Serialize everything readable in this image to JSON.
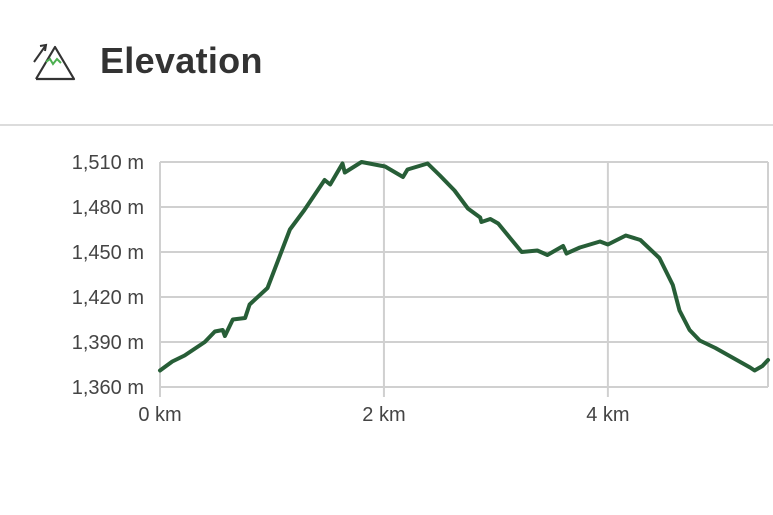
{
  "header": {
    "title": "Elevation",
    "icon": "mountain-elevation-icon"
  },
  "colors": {
    "line": "#275e37",
    "grid": "#d0d0d0",
    "icon_accent": "#4caf50"
  },
  "chart_data": {
    "type": "line",
    "title": "",
    "xlabel": "",
    "ylabel": "",
    "xlim": [
      0,
      5.43
    ],
    "ylim": [
      1360,
      1510
    ],
    "grid": true,
    "x_ticks": [
      0,
      2,
      4
    ],
    "x_tick_labels": [
      "0 km",
      "2 km",
      "4 km"
    ],
    "y_ticks": [
      1360,
      1390,
      1420,
      1450,
      1480,
      1510
    ],
    "y_tick_labels": [
      "1,360 m",
      "1,390 m",
      "1,420 m",
      "1,450 m",
      "1,480 m",
      "1,510 m"
    ],
    "series": [
      {
        "x": [
          0,
          0.11,
          0.22,
          0.4,
          0.49,
          0.56,
          0.58,
          0.65,
          0.76,
          0.8,
          0.96,
          1.16,
          1.29,
          1.47,
          1.52,
          1.63,
          1.65,
          1.8,
          2.01,
          2.17,
          2.21,
          2.39,
          2.5,
          2.63,
          2.75,
          2.86,
          2.87,
          2.95,
          3.02,
          3.13,
          3.23,
          3.37,
          3.46,
          3.6,
          3.63,
          3.75,
          3.93,
          4.0,
          4.16,
          4.29,
          4.46,
          4.58,
          4.64,
          4.73,
          4.82,
          4.96,
          5.27,
          5.31,
          5.38,
          5.43
        ],
        "y": [
          1371,
          1377,
          1381,
          1390,
          1397,
          1398,
          1394,
          1405,
          1406,
          1415,
          1426,
          1465,
          1478,
          1498,
          1495,
          1509,
          1503,
          1510,
          1507,
          1500,
          1505,
          1509,
          1501,
          1491,
          1479,
          1473,
          1470,
          1472,
          1469,
          1459,
          1450,
          1451,
          1448,
          1454,
          1449,
          1453,
          1457,
          1455,
          1461,
          1458,
          1446,
          1428,
          1411,
          1398,
          1391,
          1386,
          1373,
          1371,
          1374,
          1378
        ]
      }
    ]
  }
}
